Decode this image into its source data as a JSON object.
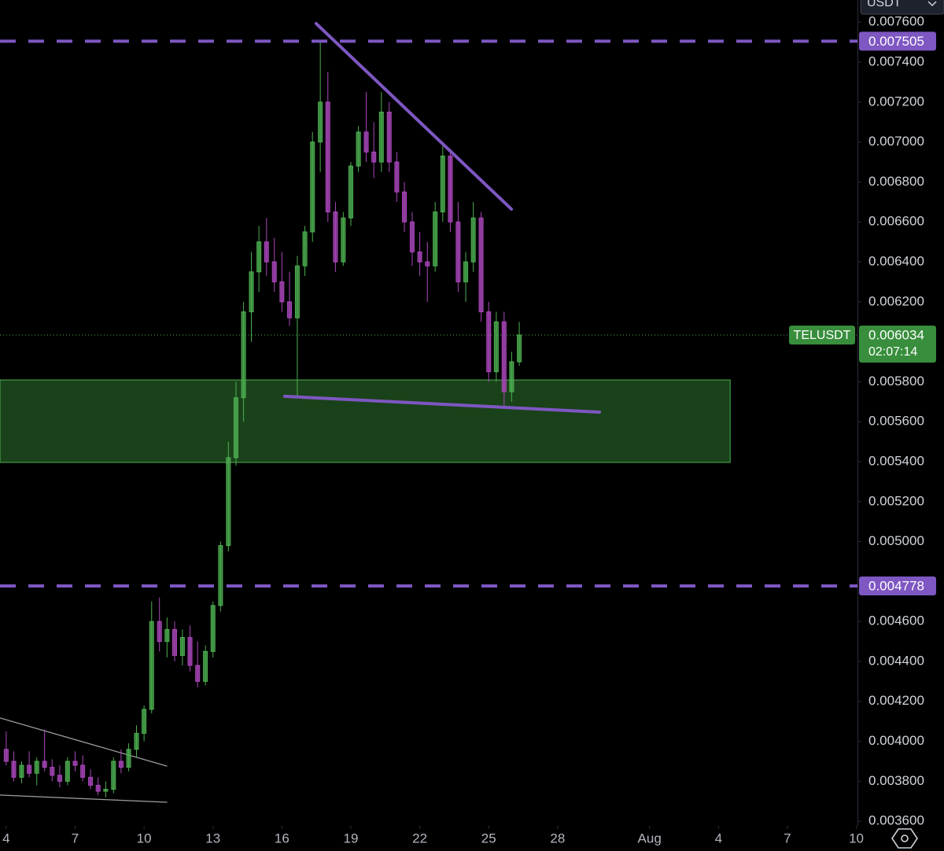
{
  "chart_data": {
    "type": "candlestick",
    "currency_label": "USDT",
    "symbol": "TELUSDT",
    "countdown": "02:07:14",
    "colors": {
      "up": "#4caf50",
      "down": "#ab47bc",
      "drawing": "#7e57c2",
      "zone": "#1e4d1e",
      "guide": "#9e9e9e"
    },
    "x": [
      4,
      4.33,
      4.67,
      5,
      5.33,
      5.67,
      6,
      6.33,
      6.67,
      7,
      7.33,
      7.67,
      8,
      8.33,
      8.67,
      9,
      9.33,
      9.67,
      10,
      10.33,
      10.67,
      11,
      11.33,
      11.67,
      12,
      12.33,
      12.67,
      13,
      13.33,
      13.67,
      14,
      14.33,
      14.67,
      15,
      15.33,
      15.67,
      16,
      16.33,
      16.67,
      17,
      17.33,
      17.67,
      18,
      18.33,
      18.67,
      19,
      19.33,
      19.67,
      20,
      20.33,
      20.67,
      21,
      21.33,
      21.67,
      22,
      22.33,
      22.67,
      23,
      23.33,
      23.67,
      24,
      24.33,
      24.67,
      25,
      25.33,
      25.67,
      26,
      26.33
    ],
    "open": [
      0.00396,
      0.0039,
      0.00382,
      0.00388,
      0.00384,
      0.0039,
      0.00387,
      0.00383,
      0.0038,
      0.0039,
      0.00388,
      0.00382,
      0.00378,
      0.00375,
      0.00376,
      0.0039,
      0.00387,
      0.00396,
      0.00404,
      0.00416,
      0.0046,
      0.0045,
      0.00456,
      0.00443,
      0.00452,
      0.00438,
      0.0043,
      0.00445,
      0.00468,
      0.00498,
      0.00542,
      0.00572,
      0.00615,
      0.00635,
      0.0065,
      0.0064,
      0.0063,
      0.0062,
      0.00612,
      0.00638,
      0.00655,
      0.007,
      0.0072,
      0.00665,
      0.0064,
      0.00662,
      0.00688,
      0.00705,
      0.00695,
      0.0069,
      0.00715,
      0.0069,
      0.00675,
      0.0066,
      0.00645,
      0.0064,
      0.00638,
      0.00665,
      0.00693,
      0.0066,
      0.0063,
      0.0064,
      0.00662,
      0.00615,
      0.00585,
      0.0061,
      0.00575,
      0.0059
    ],
    "high": [
      0.00405,
      0.00395,
      0.0039,
      0.00395,
      0.00392,
      0.00406,
      0.00391,
      0.00388,
      0.00392,
      0.00395,
      0.00393,
      0.00386,
      0.00382,
      0.0038,
      0.00392,
      0.00396,
      0.00399,
      0.00408,
      0.00418,
      0.0047,
      0.00472,
      0.00462,
      0.0046,
      0.00456,
      0.00458,
      0.0045,
      0.00448,
      0.0047,
      0.005,
      0.0055,
      0.0058,
      0.0062,
      0.00645,
      0.00658,
      0.00662,
      0.00652,
      0.00645,
      0.00635,
      0.00643,
      0.00658,
      0.00705,
      0.007505,
      0.00735,
      0.0067,
      0.00665,
      0.0069,
      0.00708,
      0.00725,
      0.0071,
      0.00725,
      0.0072,
      0.00695,
      0.0068,
      0.00665,
      0.00655,
      0.0065,
      0.0067,
      0.00698,
      0.00695,
      0.0067,
      0.00645,
      0.0067,
      0.00665,
      0.0062,
      0.00615,
      0.00615,
      0.00595,
      0.0061
    ],
    "low": [
      0.00388,
      0.0038,
      0.00379,
      0.00382,
      0.00378,
      0.00385,
      0.0038,
      0.00377,
      0.00378,
      0.00385,
      0.0038,
      0.00376,
      0.00373,
      0.00372,
      0.00374,
      0.00384,
      0.00385,
      0.00392,
      0.004,
      0.00414,
      0.00445,
      0.00442,
      0.0044,
      0.00438,
      0.00435,
      0.00427,
      0.00428,
      0.00442,
      0.00465,
      0.00495,
      0.00538,
      0.0056,
      0.006,
      0.00625,
      0.00633,
      0.00625,
      0.00615,
      0.00608,
      0.00573,
      0.00633,
      0.0065,
      0.00685,
      0.0066,
      0.00635,
      0.00638,
      0.00658,
      0.00685,
      0.0069,
      0.00682,
      0.00685,
      0.00685,
      0.0067,
      0.00655,
      0.00638,
      0.00633,
      0.0062,
      0.00635,
      0.0066,
      0.00655,
      0.00625,
      0.0062,
      0.00635,
      0.0061,
      0.0058,
      0.0058,
      0.00568,
      0.0057,
      0.00588
    ],
    "close": [
      0.0039,
      0.00382,
      0.00388,
      0.00384,
      0.0039,
      0.00387,
      0.00383,
      0.0038,
      0.0039,
      0.00388,
      0.00382,
      0.00378,
      0.00375,
      0.00376,
      0.0039,
      0.00387,
      0.00396,
      0.00404,
      0.00416,
      0.0046,
      0.0045,
      0.00456,
      0.00443,
      0.00452,
      0.00438,
      0.0043,
      0.00445,
      0.00468,
      0.00498,
      0.00542,
      0.00572,
      0.00615,
      0.00635,
      0.0065,
      0.0064,
      0.0063,
      0.0062,
      0.00612,
      0.00638,
      0.00655,
      0.007,
      0.0072,
      0.00665,
      0.0064,
      0.00662,
      0.00688,
      0.00705,
      0.00695,
      0.0069,
      0.00715,
      0.0069,
      0.00675,
      0.0066,
      0.00645,
      0.0064,
      0.00638,
      0.00665,
      0.00693,
      0.0066,
      0.0063,
      0.0064,
      0.00662,
      0.00615,
      0.00585,
      0.0061,
      0.00575,
      0.0059,
      0.006034
    ],
    "xlim": [
      3.73,
      41.05
    ],
    "ylim": [
      0.003577,
      0.007711
    ],
    "xticks": [
      4,
      7,
      10,
      13,
      16,
      19,
      22,
      25,
      28,
      {
        "value": 32,
        "label": "Aug"
      },
      {
        "value": 35,
        "label": "4"
      },
      {
        "value": 38,
        "label": "7"
      },
      {
        "value": 41,
        "label": "10"
      }
    ],
    "yticks": [
      {
        "value": 0.0036,
        "label": "0.003600"
      },
      {
        "value": 0.0038,
        "label": "0.003800"
      },
      {
        "value": 0.004,
        "label": "0.004000"
      },
      {
        "value": 0.0042,
        "label": "0.004200"
      },
      {
        "value": 0.0044,
        "label": "0.004400"
      },
      {
        "value": 0.0046,
        "label": "0.004600"
      },
      {
        "value": 0.005,
        "label": "0.005000"
      },
      {
        "value": 0.0052,
        "label": "0.005200"
      },
      {
        "value": 0.0054,
        "label": "0.005400"
      },
      {
        "value": 0.0056,
        "label": "0.005600"
      },
      {
        "value": 0.0058,
        "label": "0.005800"
      },
      {
        "value": 0.0062,
        "label": "0.006200"
      },
      {
        "value": 0.0064,
        "label": "0.006400"
      },
      {
        "value": 0.0066,
        "label": "0.006600"
      },
      {
        "value": 0.0068,
        "label": "0.006800"
      },
      {
        "value": 0.007,
        "label": "0.007000"
      },
      {
        "value": 0.0072,
        "label": "0.007200"
      },
      {
        "value": 0.0074,
        "label": "0.007400"
      },
      {
        "value": 0.0076,
        "label": "0.007600"
      }
    ],
    "price_lines": [
      0.007505,
      0.004778
    ],
    "trend_lines": [
      {
        "x": [
          17.49,
          25.99
        ],
        "y": [
          0.007593,
          0.006664
        ],
        "style": "drawing"
      },
      {
        "x": [
          16.12,
          29.82
        ],
        "y": [
          0.005727,
          0.005648
        ],
        "style": "drawing"
      },
      {
        "x": [
          3.73,
          10.99
        ],
        "y": [
          0.004117,
          0.003876
        ],
        "style": "guide"
      },
      {
        "x": [
          3.73,
          10.99
        ],
        "y": [
          0.003731,
          0.003695
        ],
        "style": "guide"
      }
    ],
    "zone": {
      "x": [
        3.73,
        35.51
      ],
      "y": [
        0.005396,
        0.005809
      ]
    }
  }
}
